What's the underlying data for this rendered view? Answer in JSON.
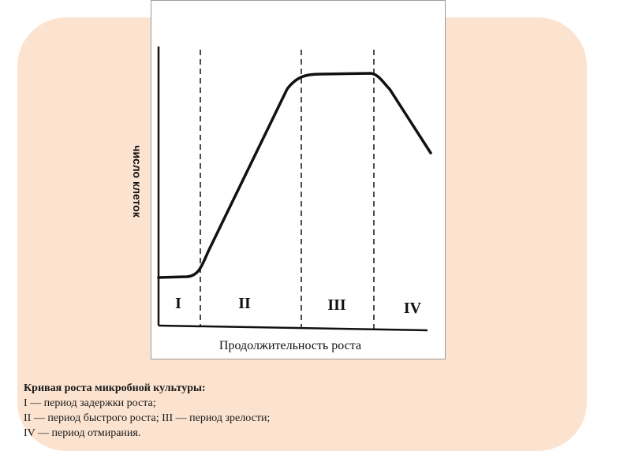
{
  "figure": {
    "y_axis_label": "число клеток",
    "x_axis_label": "Продолжительность роста",
    "phases": [
      "I",
      "II",
      "III",
      "IV"
    ]
  },
  "caption": {
    "title": "Кривая роста микробной культуры:",
    "lines": [
      "I  — период задержки роста;",
      "II  — период быстрого роста; III — период зрелости;",
      "IV — период отмирания."
    ]
  },
  "colors": {
    "panel": "#fbe3d0",
    "ink": "#111111"
  }
}
